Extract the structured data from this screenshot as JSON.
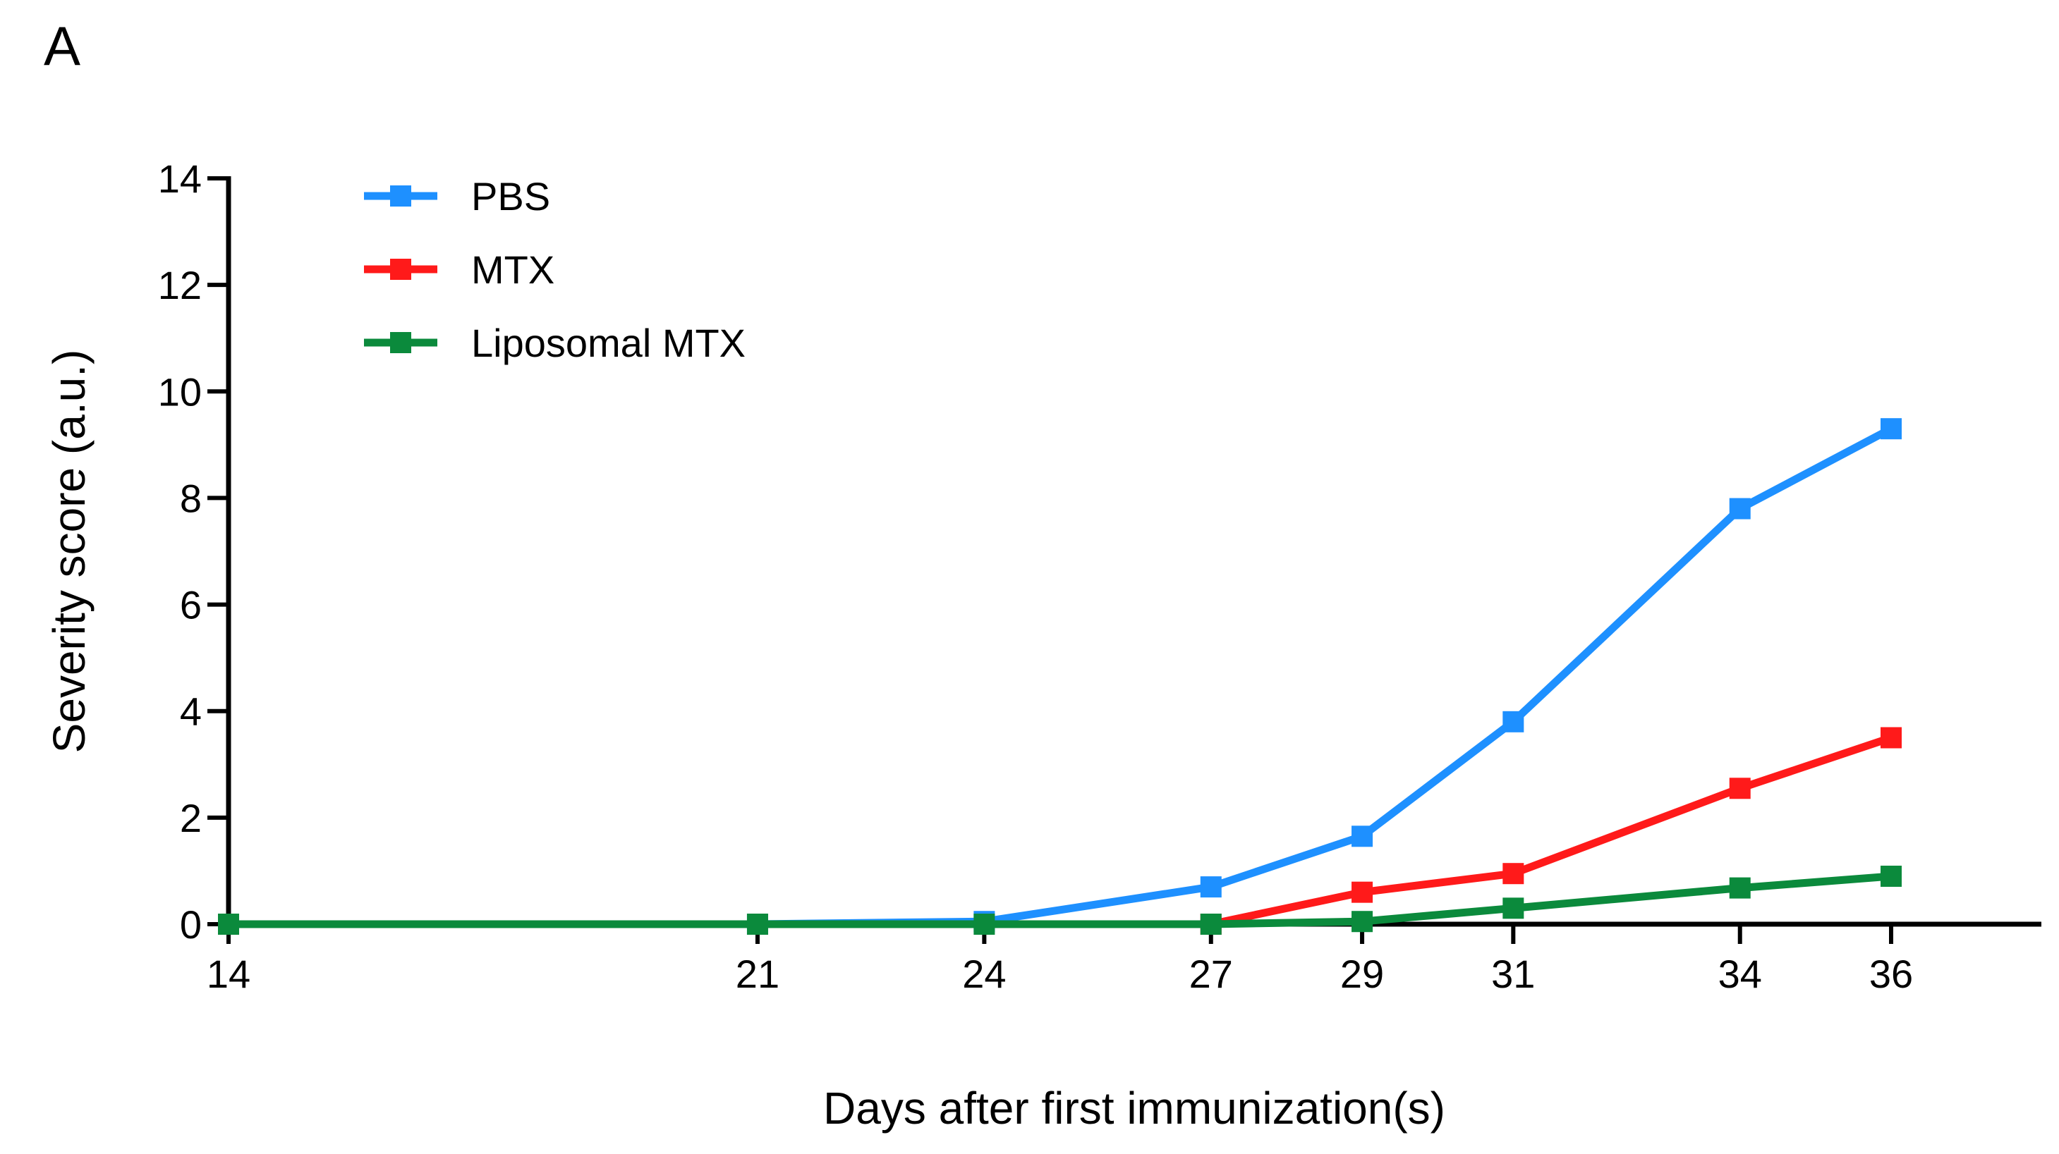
{
  "panel_label": "A",
  "chart_data": {
    "type": "line",
    "title": "",
    "xlabel": "Days after first immunization(s)",
    "ylabel": "Severity score (a.u.)",
    "x": [
      14,
      21,
      24,
      27,
      29,
      31,
      34,
      36
    ],
    "xlim": [
      14,
      38
    ],
    "ylim": [
      0,
      14
    ],
    "xticks": [
      14,
      21,
      24,
      27,
      29,
      31,
      34,
      36
    ],
    "yticks": [
      0,
      2,
      4,
      6,
      8,
      10,
      12,
      14
    ],
    "grid": false,
    "legend_position": "top-left",
    "series": [
      {
        "name": "PBS",
        "color": "#1e90ff",
        "marker": "square",
        "x": [
          14,
          21,
          24,
          27,
          29,
          31,
          34,
          36
        ],
        "values": [
          0,
          0,
          0.05,
          0.7,
          1.65,
          3.8,
          7.8,
          9.3
        ]
      },
      {
        "name": "MTX",
        "color": "#ff1a1a",
        "marker": "square",
        "x": [
          27,
          29,
          31,
          34,
          36
        ],
        "values": [
          0,
          0.6,
          0.95,
          2.55,
          3.5
        ]
      },
      {
        "name": "Liposomal MTX",
        "color": "#0b8a3c",
        "marker": "square",
        "x": [
          14,
          21,
          24,
          27,
          29,
          31,
          34,
          36
        ],
        "values": [
          0,
          0,
          0,
          0,
          0.05,
          0.3,
          0.68,
          0.9
        ]
      }
    ]
  }
}
